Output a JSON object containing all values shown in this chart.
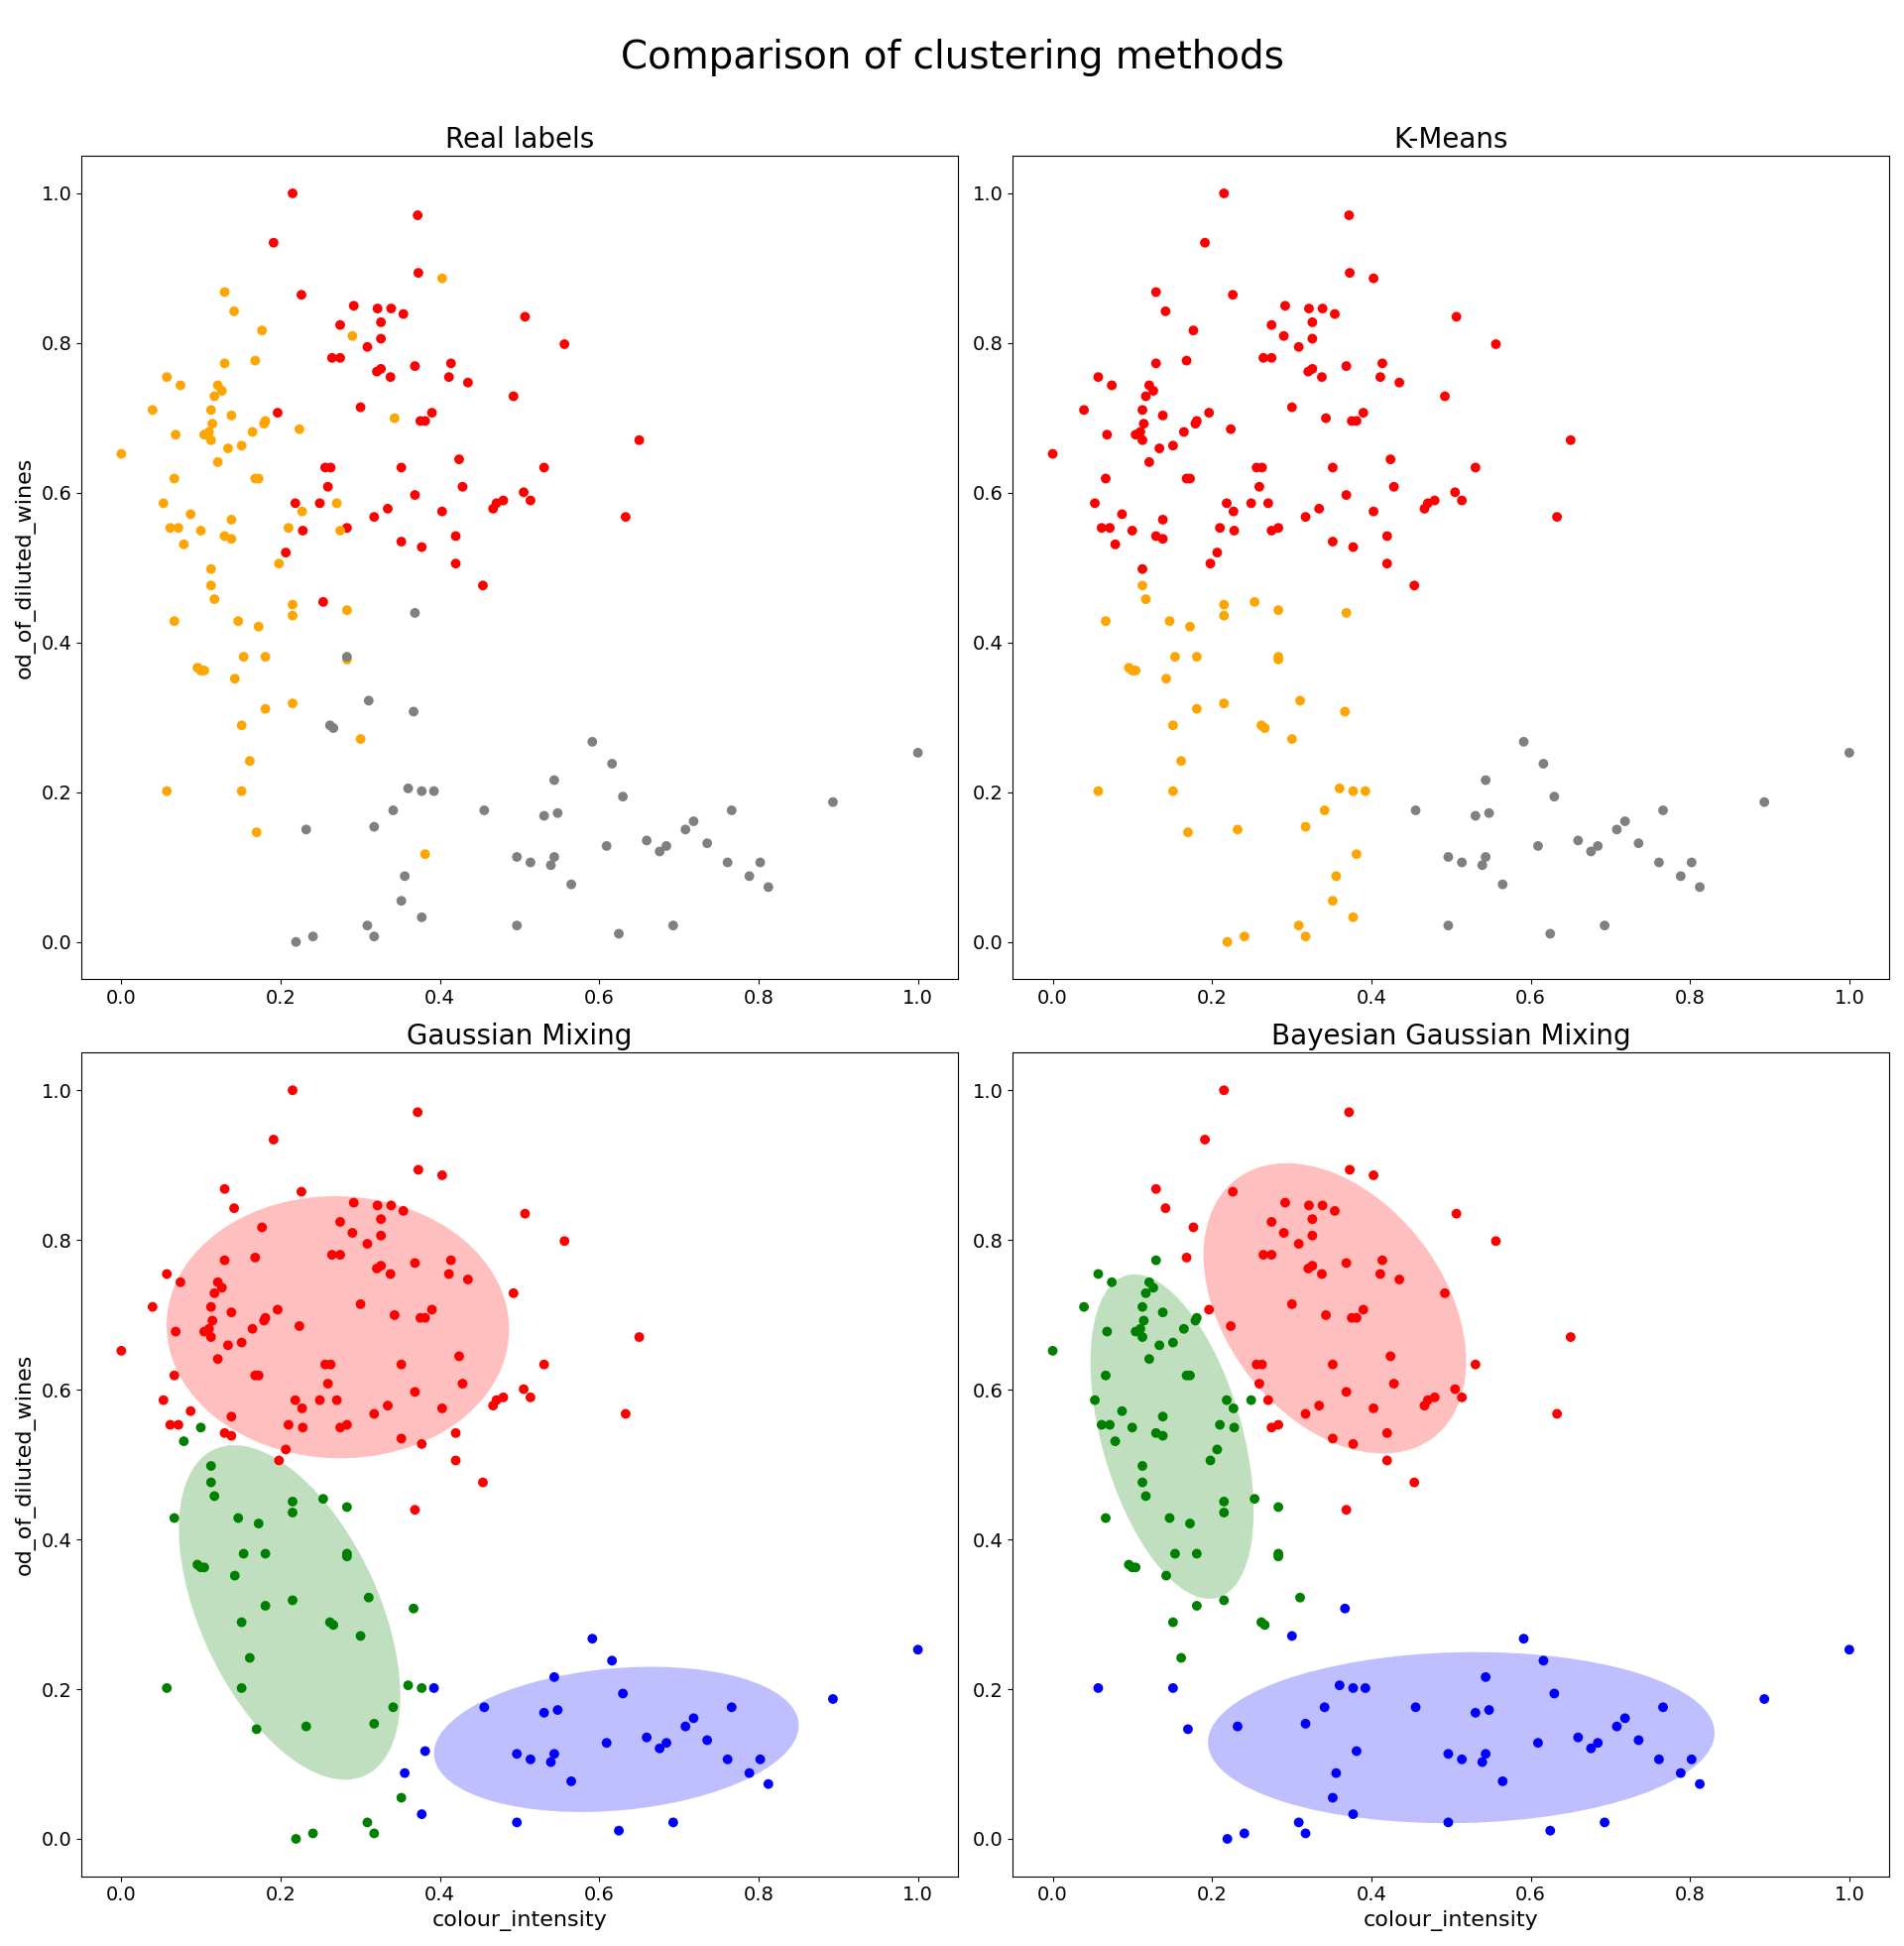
{
  "title": "Comparison of clustering methods",
  "subplot_titles": [
    "Real labels",
    "K-Means",
    "Gaussian Mixing",
    "Bayesian Gaussian Mixing"
  ],
  "xlabel": "colour_intensity",
  "ylabel": "od_of_diluted_wines",
  "figsize": [
    19.2,
    19.62
  ],
  "title_fontsize": 28,
  "subplot_title_fontsize": 20,
  "axis_label_fontsize": 16,
  "tick_fontsize": 14,
  "ellipse_alpha": 0.25,
  "ellipse_n_std": 1.5,
  "scatter_size": 50,
  "xlim": [
    -0.05,
    1.05
  ],
  "ylim": [
    -0.05,
    1.05
  ]
}
